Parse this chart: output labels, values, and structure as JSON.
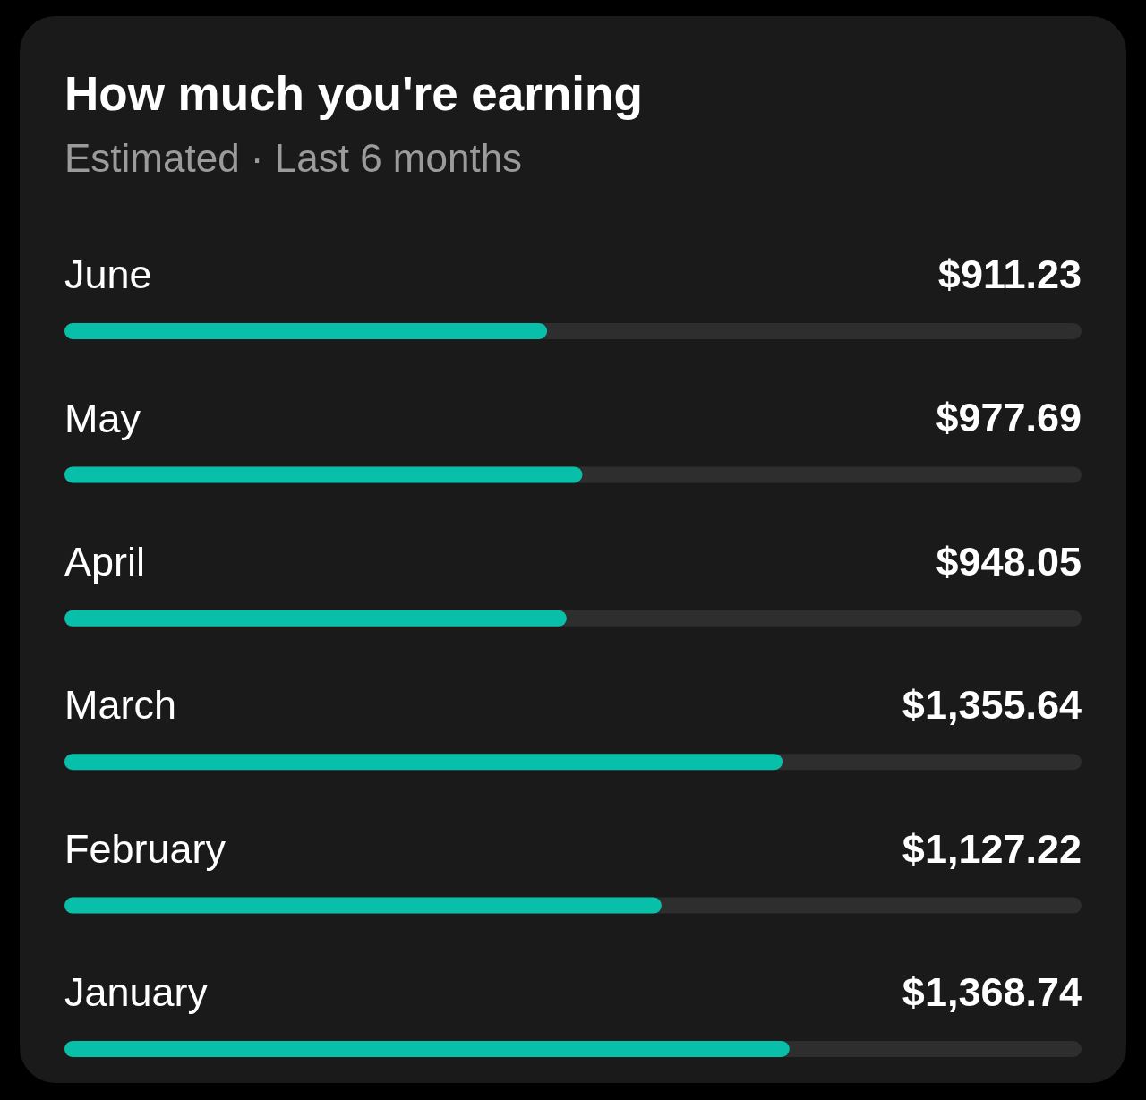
{
  "chart_data": {
    "type": "bar",
    "orientation": "horizontal",
    "title": "How much you're earning",
    "subtitle": "Estimated · Last 6 months",
    "categories": [
      "June",
      "May",
      "April",
      "March",
      "February",
      "January"
    ],
    "values": [
      911.23,
      977.69,
      948.05,
      1355.64,
      1127.22,
      1368.74
    ],
    "value_labels": [
      "$911.23",
      "$977.69",
      "$948.05",
      "$1,355.64",
      "$1,127.22",
      "$1,368.74"
    ],
    "color": "#08bfa9",
    "xlim": [
      0,
      1920
    ],
    "tick_labels": "y"
  }
}
